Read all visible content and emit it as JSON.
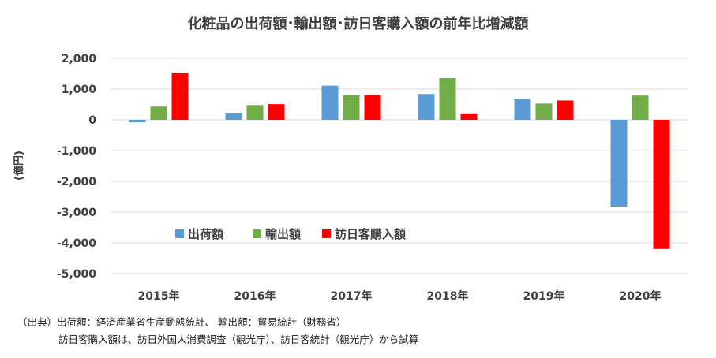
{
  "chart_data": {
    "type": "bar",
    "title": "化粧品の出荷額･輸出額･訪日客購入額の前年比増減額",
    "ylabel": "(億円)",
    "xlabel": "",
    "categories": [
      "2015年",
      "2016年",
      "2017年",
      "2018年",
      "2019年",
      "2020年"
    ],
    "ylim": [
      -5000,
      2000
    ],
    "yticks": [
      2000,
      1000,
      0,
      -1000,
      -2000,
      -3000,
      -4000,
      -5000
    ],
    "ytick_labels": [
      "2,000",
      "1,000",
      "0",
      "-1,000",
      "-2,000",
      "-3,000",
      "-4,000",
      "-5,000"
    ],
    "grid": true,
    "legend_position": "center",
    "series": [
      {
        "name": "出荷額",
        "color": "#5B9BD5",
        "values": [
          -80,
          230,
          1110,
          840,
          680,
          -2820
        ]
      },
      {
        "name": "輸出額",
        "color": "#70AD47",
        "values": [
          430,
          480,
          800,
          1360,
          530,
          790
        ]
      },
      {
        "name": "訪日客購入額",
        "color": "#FF0000",
        "values": [
          1520,
          510,
          810,
          210,
          630,
          -4200
        ]
      }
    ]
  },
  "source": {
    "line1": "（出典）出荷額：経済産業省生産動態統計、 輸出額：貿易統計（財務省）",
    "line2": "訪日客購入額は、訪日外国人消費調査（観光庁）、訪日客統計（観光庁）から試算"
  }
}
